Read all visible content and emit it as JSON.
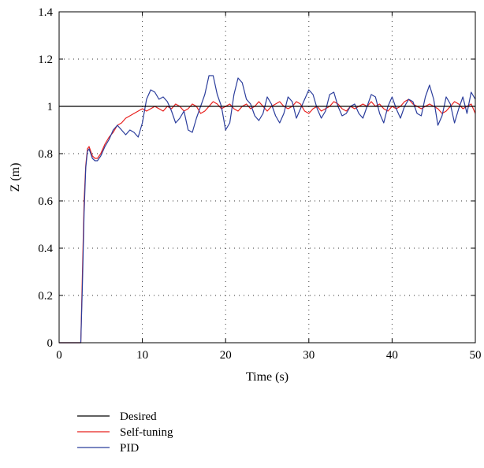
{
  "chart_data": {
    "type": "line",
    "title": "",
    "xlabel": "Time (s)",
    "ylabel": "Z (m)",
    "xlim": [
      0,
      50
    ],
    "ylim": [
      0,
      1.4
    ],
    "xticks": [
      0,
      10,
      20,
      30,
      40,
      50
    ],
    "yticks": [
      0,
      0.2,
      0.4,
      0.6,
      0.8,
      1,
      1.2,
      1.4
    ],
    "xtick_labels": [
      "0",
      "10",
      "20",
      "30",
      "40",
      "50"
    ],
    "ytick_labels": [
      "0",
      "0.2",
      "0.4",
      "0.6",
      "0.8",
      "1",
      "1.2",
      "1.4"
    ],
    "grid": true,
    "legend_position": "below",
    "series": [
      {
        "name": "Desired",
        "color": "#000000",
        "x": [
          0,
          50
        ],
        "y": [
          1,
          1
        ]
      },
      {
        "name": "Self-tuning",
        "color": "#e8201e",
        "x": [
          0,
          2.6,
          2.8,
          3.0,
          3.2,
          3.4,
          3.6,
          3.8,
          4.0,
          4.3,
          4.6,
          5.0,
          5.5,
          6.0,
          6.5,
          7.0,
          7.5,
          8.0,
          8.5,
          9.0,
          9.5,
          10.0,
          10.5,
          11.0,
          11.5,
          12.0,
          12.5,
          13.0,
          13.5,
          14.0,
          14.5,
          15.0,
          15.5,
          16.0,
          16.5,
          17.0,
          17.5,
          18.0,
          18.5,
          19.0,
          19.5,
          20.0,
          20.5,
          21.0,
          21.5,
          22.0,
          22.5,
          23.0,
          23.5,
          24.0,
          24.5,
          25.0,
          25.5,
          26.0,
          26.5,
          27.0,
          27.5,
          28.0,
          28.5,
          29.0,
          29.5,
          30.0,
          30.5,
          31.0,
          31.5,
          32.0,
          32.5,
          33.0,
          33.5,
          34.0,
          34.5,
          35.0,
          35.5,
          36.0,
          36.5,
          37.0,
          37.5,
          38.0,
          38.5,
          39.0,
          39.5,
          40.0,
          40.5,
          41.0,
          41.5,
          42.0,
          42.5,
          43.0,
          43.5,
          44.0,
          44.5,
          45.0,
          45.5,
          46.0,
          46.5,
          47.0,
          47.5,
          48.0,
          48.5,
          49.0,
          49.5,
          50.0
        ],
        "y": [
          0,
          0,
          0.3,
          0.6,
          0.75,
          0.82,
          0.83,
          0.81,
          0.79,
          0.78,
          0.78,
          0.8,
          0.84,
          0.87,
          0.89,
          0.92,
          0.93,
          0.95,
          0.96,
          0.97,
          0.98,
          0.99,
          0.98,
          0.99,
          1.0,
          0.99,
          0.98,
          1.0,
          0.99,
          1.01,
          1.0,
          0.98,
          0.99,
          1.01,
          1.0,
          0.97,
          0.98,
          1.0,
          1.02,
          1.01,
          0.99,
          1.0,
          1.01,
          0.99,
          0.98,
          1.0,
          1.01,
          0.99,
          1.0,
          1.02,
          1.0,
          0.98,
          1.0,
          1.01,
          1.02,
          1.0,
          0.99,
          1.0,
          1.02,
          1.01,
          0.98,
          0.97,
          0.99,
          1.0,
          0.98,
          0.99,
          1.0,
          1.02,
          1.01,
          0.99,
          0.98,
          1.0,
          0.99,
          1.0,
          1.01,
          1.0,
          1.02,
          1.0,
          1.01,
          0.99,
          0.98,
          1.0,
          0.99,
          1.0,
          1.02,
          1.03,
          1.01,
          1.0,
          0.99,
          1.0,
          1.01,
          1.0,
          0.99,
          0.97,
          0.98,
          1.0,
          1.02,
          1.01,
          0.99,
          1.0,
          1.01,
          0.97
        ]
      },
      {
        "name": "PID",
        "color": "#2b3d9c",
        "x": [
          0,
          2.6,
          2.8,
          3.0,
          3.2,
          3.4,
          3.6,
          3.8,
          4.0,
          4.3,
          4.6,
          5.0,
          5.5,
          6.0,
          6.5,
          7.0,
          7.5,
          8.0,
          8.5,
          9.0,
          9.5,
          10.0,
          10.5,
          11.0,
          11.5,
          12.0,
          12.5,
          13.0,
          13.5,
          14.0,
          14.5,
          15.0,
          15.5,
          16.0,
          16.5,
          17.0,
          17.5,
          18.0,
          18.5,
          19.0,
          19.5,
          20.0,
          20.5,
          21.0,
          21.5,
          22.0,
          22.5,
          23.0,
          23.5,
          24.0,
          24.5,
          25.0,
          25.5,
          26.0,
          26.5,
          27.0,
          27.5,
          28.0,
          28.5,
          29.0,
          29.5,
          30.0,
          30.5,
          31.0,
          31.5,
          32.0,
          32.5,
          33.0,
          33.5,
          34.0,
          34.5,
          35.0,
          35.5,
          36.0,
          36.5,
          37.0,
          37.5,
          38.0,
          38.5,
          39.0,
          39.5,
          40.0,
          40.5,
          41.0,
          41.5,
          42.0,
          42.5,
          43.0,
          43.5,
          44.0,
          44.5,
          45.0,
          45.5,
          46.0,
          46.5,
          47.0,
          47.5,
          48.0,
          48.5,
          49.0,
          49.5,
          50.0
        ],
        "y": [
          0,
          0,
          0.25,
          0.55,
          0.74,
          0.81,
          0.82,
          0.8,
          0.78,
          0.77,
          0.77,
          0.79,
          0.83,
          0.86,
          0.9,
          0.92,
          0.9,
          0.88,
          0.9,
          0.89,
          0.87,
          0.93,
          1.03,
          1.07,
          1.06,
          1.03,
          1.04,
          1.02,
          0.98,
          0.93,
          0.95,
          0.98,
          0.9,
          0.89,
          0.95,
          1.0,
          1.05,
          1.13,
          1.13,
          1.05,
          1.0,
          0.9,
          0.93,
          1.05,
          1.12,
          1.1,
          1.03,
          1.01,
          0.96,
          0.94,
          0.97,
          1.04,
          1.01,
          0.96,
          0.93,
          0.97,
          1.04,
          1.02,
          0.95,
          0.99,
          1.03,
          1.07,
          1.05,
          0.99,
          0.95,
          0.98,
          1.05,
          1.06,
          1.0,
          0.96,
          0.97,
          1.0,
          1.01,
          0.97,
          0.95,
          1.0,
          1.05,
          1.04,
          0.97,
          0.93,
          1.0,
          1.04,
          0.99,
          0.95,
          1.0,
          1.03,
          1.02,
          0.97,
          0.96,
          1.04,
          1.09,
          1.03,
          0.92,
          0.96,
          1.04,
          1.01,
          0.93,
          0.99,
          1.04,
          0.97,
          1.06,
          1.03
        ]
      }
    ]
  }
}
